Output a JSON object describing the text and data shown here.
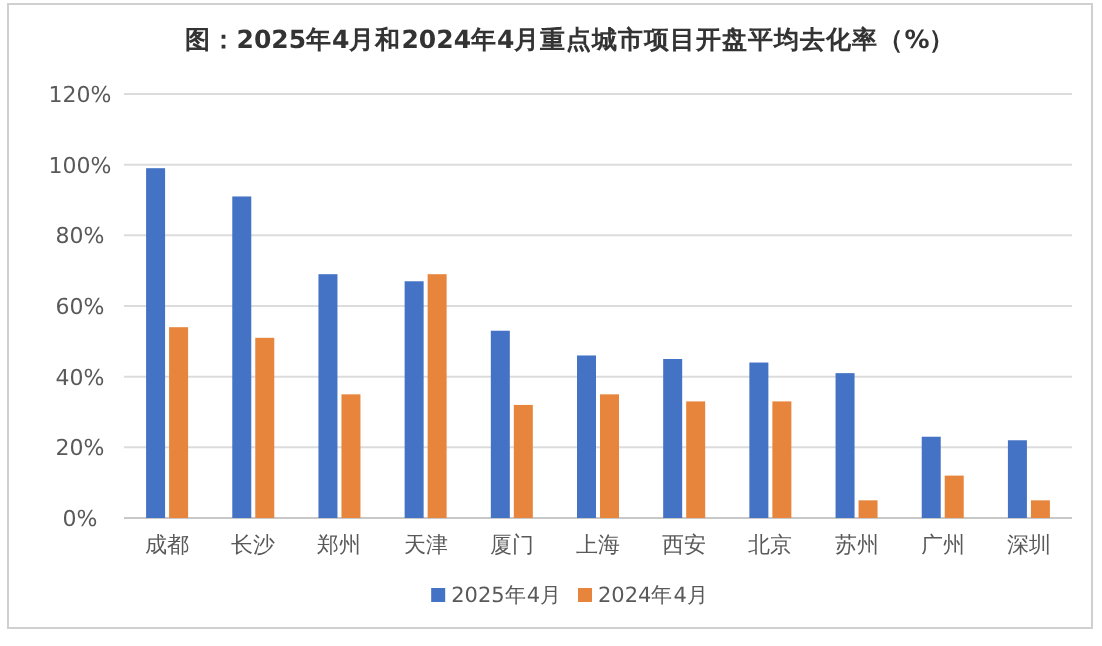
{
  "chart_data": {
    "type": "bar",
    "title": "图：2025年4月和2024年4月重点城市项目开盘平均去化率（%）",
    "categories": [
      "成都",
      "长沙",
      "郑州",
      "天津",
      "厦门",
      "上海",
      "西安",
      "北京",
      "苏州",
      "广州",
      "深圳"
    ],
    "series": [
      {
        "name": "2025年4月",
        "color": "#4472c4",
        "values": [
          99,
          91,
          69,
          67,
          53,
          46,
          45,
          44,
          41,
          23,
          22
        ]
      },
      {
        "name": "2024年4月",
        "color": "#e8853d",
        "values": [
          54,
          51,
          35,
          69,
          32,
          35,
          33,
          33,
          5,
          12,
          5
        ]
      }
    ],
    "ylim": [
      0,
      120
    ],
    "yticks": [
      {
        "value": 0,
        "label": "0%"
      },
      {
        "value": 20,
        "label": "20%"
      },
      {
        "value": 40,
        "label": "40%"
      },
      {
        "value": 60,
        "label": "60%"
      },
      {
        "value": 80,
        "label": "80%"
      },
      {
        "value": 100,
        "label": "100%"
      },
      {
        "value": 120,
        "label": "120%"
      }
    ],
    "grid": "y",
    "legend": "bottom"
  }
}
